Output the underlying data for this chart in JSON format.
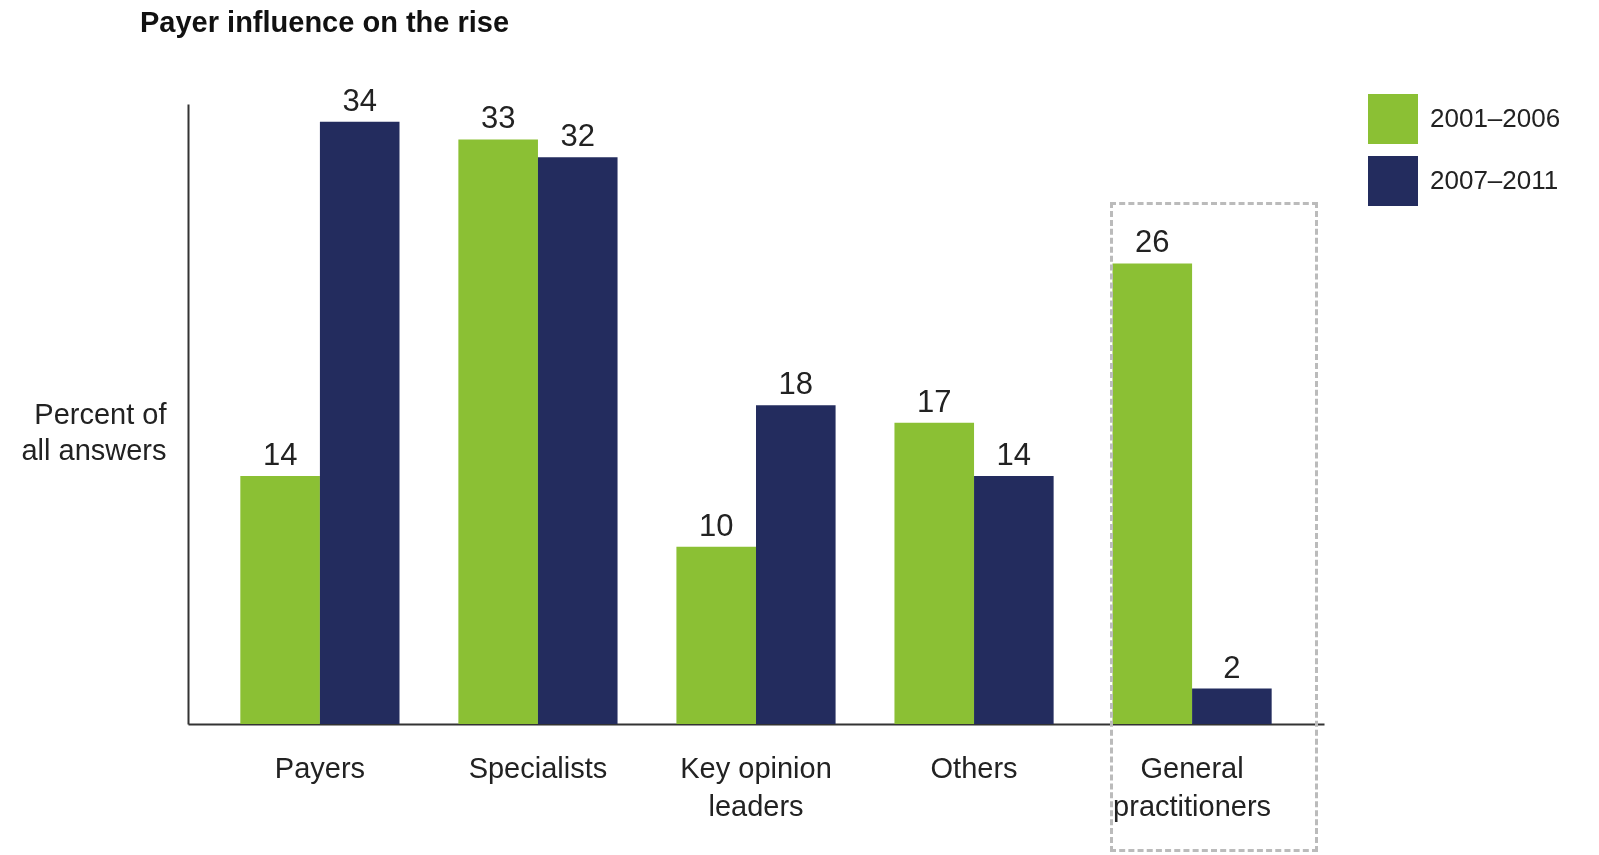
{
  "chart_data": {
    "type": "bar",
    "title": "Payer influence on the rise",
    "ylabel": "Percent of all answers",
    "categories": [
      "Payers",
      "Specialists",
      "Key opinion leaders",
      "Others",
      "General practitioners"
    ],
    "series": [
      {
        "name": "2001–2006",
        "color": "#8bc034",
        "values": [
          14,
          33,
          10,
          17,
          26
        ]
      },
      {
        "name": "2007–2011",
        "color": "#232c5e",
        "values": [
          34,
          32,
          18,
          14,
          2
        ]
      }
    ],
    "data_labels": true,
    "legend": "top right",
    "tick_labels": "x",
    "grid": false
  }
}
